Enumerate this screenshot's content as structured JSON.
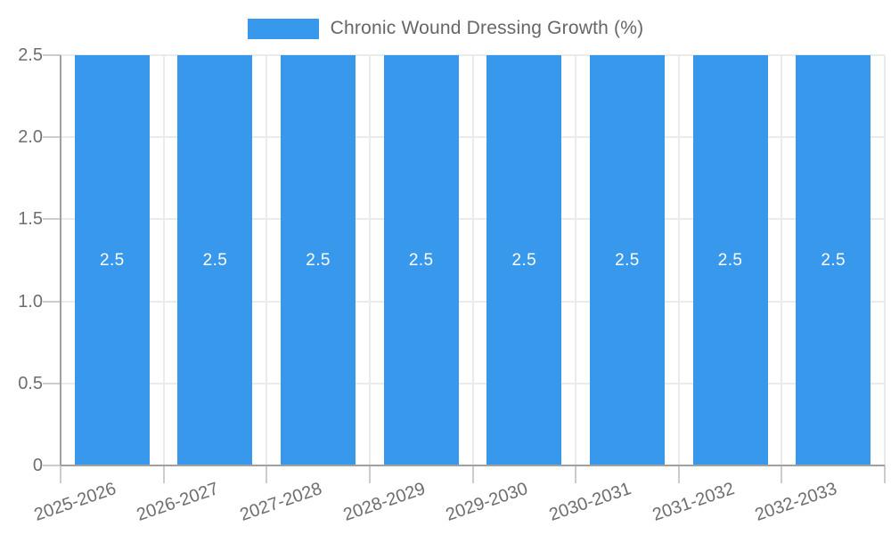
{
  "legend": {
    "label": "Chronic Wound Dressing Growth (%)",
    "swatch_color": "#3899EC"
  },
  "chart_data": {
    "type": "bar",
    "title": "Chronic Wound Dressing Growth (%)",
    "categories": [
      "2025-2026",
      "2026-2027",
      "2027-2028",
      "2028-2029",
      "2029-2030",
      "2030-2031",
      "2031-2032",
      "2032-2033"
    ],
    "values": [
      2.5,
      2.5,
      2.5,
      2.5,
      2.5,
      2.5,
      2.5,
      2.5
    ],
    "bar_labels": [
      "2.5",
      "2.5",
      "2.5",
      "2.5",
      "2.5",
      "2.5",
      "2.5",
      "2.5"
    ],
    "xlabel": "",
    "ylabel": "",
    "ylim": [
      0,
      2.5
    ],
    "yticks": [
      "2.5",
      "2.0",
      "1.5",
      "1.0",
      "0.5",
      "0"
    ],
    "grid": true,
    "legend_position": "top-center",
    "bar_color": "#3899EC",
    "bar_label_color": "#ffffff",
    "axis_color": "#a0a0a0",
    "grid_color": "#ebebeb",
    "tick_text_color": "#6e6e6e"
  }
}
